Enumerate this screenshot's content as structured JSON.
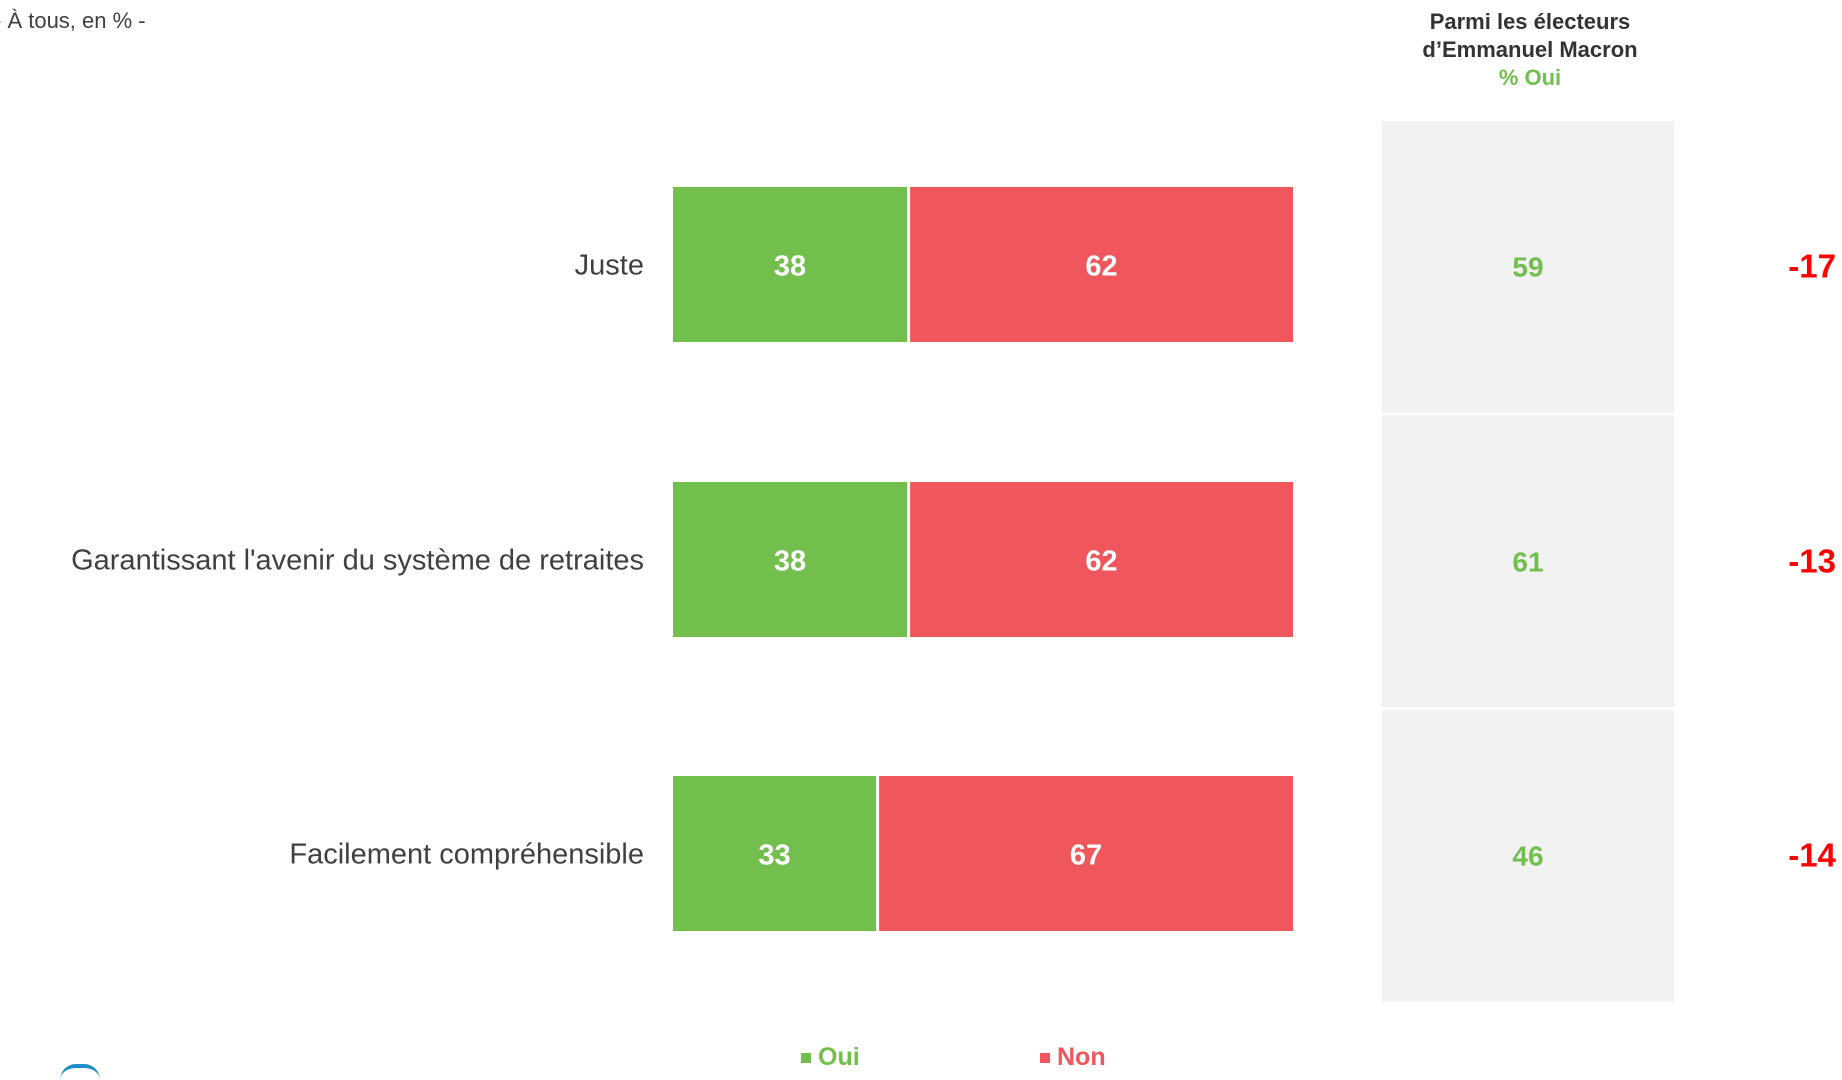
{
  "subtitle": "- À tous, en % -",
  "macron_header": {
    "line1": "Parmi les électeurs",
    "line2": "d’Emmanuel Macron",
    "line3": "% Oui"
  },
  "colors": {
    "oui": "#72bf4e",
    "non": "#f0575c",
    "panel": "#f2f2f2",
    "diff": "#ff0000"
  },
  "chart_data": {
    "type": "bar",
    "orientation": "horizontal",
    "stacked": true,
    "categories": [
      "Juste",
      "Garantissant l'avenir du système de retraites",
      "Facilement compréhensible"
    ],
    "series": [
      {
        "name": "Oui",
        "values": [
          38,
          38,
          33
        ]
      },
      {
        "name": "Non",
        "values": [
          62,
          62,
          67
        ]
      }
    ],
    "xlim": [
      0,
      100
    ],
    "side_column": {
      "values": [
        59,
        61,
        46
      ]
    },
    "difference": {
      "values": [
        "-17",
        "-13",
        "-14"
      ]
    },
    "legend": [
      "Oui",
      "Non"
    ],
    "legend_position": "bottom",
    "grid": false
  }
}
